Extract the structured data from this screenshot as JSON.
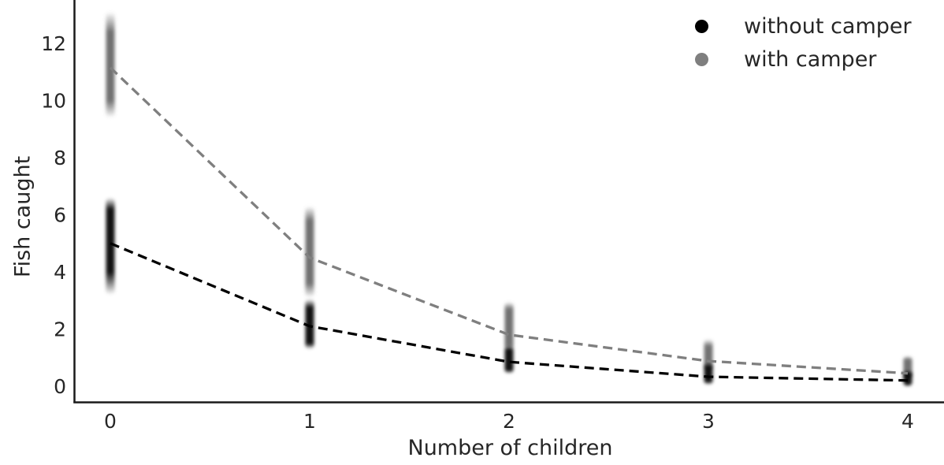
{
  "page": {
    "background": "#ffffff"
  },
  "chart_data": {
    "type": "scatter",
    "title": "",
    "xlabel": "Number of children",
    "ylabel": "Fish caught",
    "grid": false,
    "x_values": [
      0,
      1,
      2,
      3,
      4
    ],
    "x_tick_labels": [
      "0",
      "1",
      "2",
      "3",
      "4"
    ],
    "y_tick_values": [
      0,
      2,
      4,
      6,
      8,
      10,
      12
    ],
    "y_tick_labels": [
      "0",
      "2",
      "4",
      "6",
      "8",
      "10",
      "12"
    ],
    "xlim": [
      -0.18,
      4.18
    ],
    "ylim": [
      -0.6,
      13.5
    ],
    "axis_color": "#1a1a1a",
    "text_color": "#262626",
    "line_style": "dashed",
    "legend": {
      "position": "upper right"
    },
    "series": [
      {
        "name": "without camper",
        "color": "#000000",
        "cluster_color": "#000000",
        "mean": [
          5.0,
          2.1,
          0.85,
          0.33,
          0.2
        ],
        "cluster_range": [
          [
            3.2,
            6.6
          ],
          [
            1.3,
            3.05
          ],
          [
            0.45,
            1.4
          ],
          [
            0.06,
            0.8
          ],
          [
            0.0,
            0.55
          ]
        ],
        "cluster_dense": [
          [
            4.0,
            6.2
          ],
          [
            1.5,
            2.75
          ],
          [
            0.55,
            1.3
          ],
          [
            0.15,
            0.7
          ],
          [
            0.05,
            0.45
          ]
        ]
      },
      {
        "name": "with camper",
        "color": "#7f7f7f",
        "cluster_color": "#676767",
        "mean": [
          11.15,
          4.5,
          1.8,
          0.88,
          0.45
        ],
        "cluster_range": [
          [
            9.4,
            13.1
          ],
          [
            3.1,
            6.3
          ],
          [
            1.25,
            2.95
          ],
          [
            0.55,
            1.65
          ],
          [
            0.28,
            1.05
          ]
        ],
        "cluster_dense": [
          [
            10.0,
            12.4
          ],
          [
            3.6,
            5.8
          ],
          [
            1.4,
            2.7
          ],
          [
            0.7,
            1.4
          ],
          [
            0.35,
            0.95
          ]
        ]
      }
    ]
  }
}
